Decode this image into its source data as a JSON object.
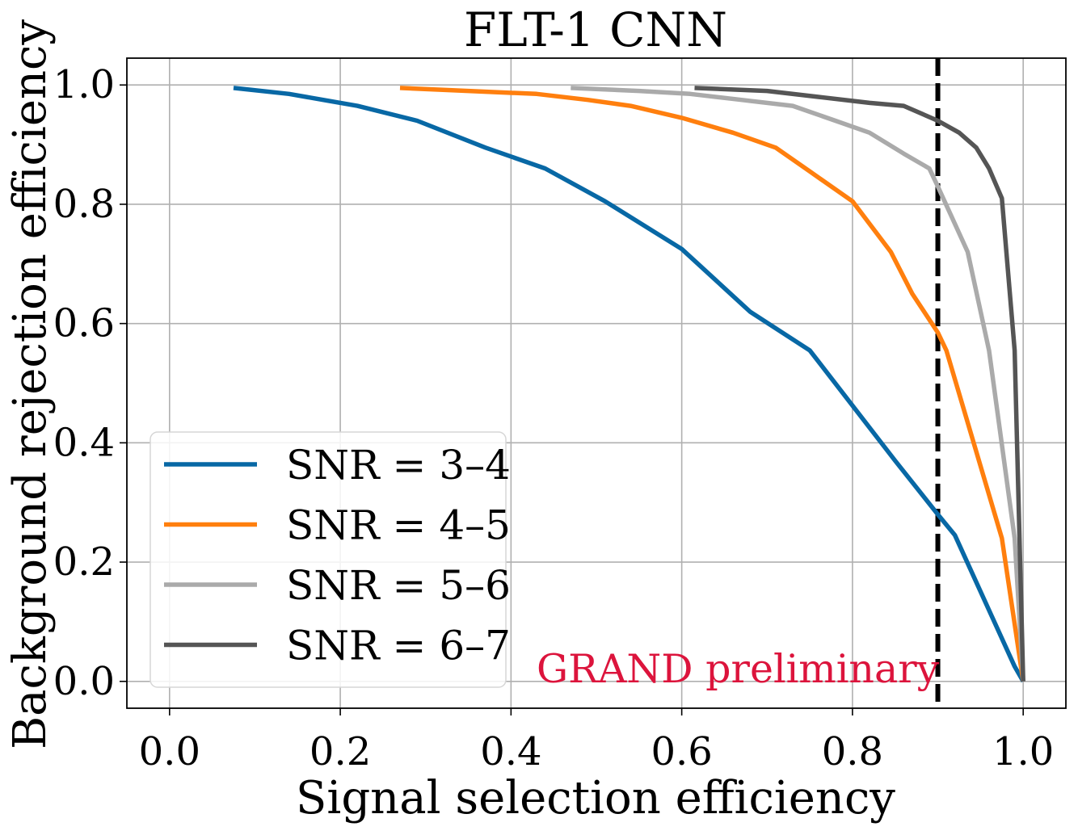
{
  "chart_data": {
    "type": "line",
    "title": "FLT-1 CNN",
    "xlabel": "Signal selection efficiency",
    "ylabel": "Background rejection efficiency",
    "xlim": [
      -0.05,
      1.05
    ],
    "ylim": [
      -0.045,
      1.045
    ],
    "xticks": [
      "0.0",
      "0.2",
      "0.4",
      "0.6",
      "0.8",
      "1.0"
    ],
    "yticks": [
      "0.0",
      "0.2",
      "0.4",
      "0.6",
      "0.8",
      "1.0"
    ],
    "grid": true,
    "legend_position": "lower-left",
    "annotation": "GRAND preliminary",
    "annotation_color": "#dc143c",
    "threshold_line": {
      "x": 0.9,
      "style": "dashed",
      "color": "#000000"
    },
    "series": [
      {
        "name": "SNR = 3–4",
        "color": "#0868a5",
        "x": [
          0.075,
          0.14,
          0.22,
          0.29,
          0.37,
          0.44,
          0.51,
          0.6,
          0.68,
          0.75,
          0.85,
          0.9,
          0.92,
          0.99,
          1.0
        ],
        "y": [
          0.995,
          0.985,
          0.965,
          0.94,
          0.895,
          0.86,
          0.805,
          0.725,
          0.62,
          0.555,
          0.37,
          0.28,
          0.245,
          0.025,
          0.0
        ]
      },
      {
        "name": "SNR = 4–5",
        "color": "#ff7f0e",
        "x": [
          0.27,
          0.35,
          0.43,
          0.49,
          0.54,
          0.6,
          0.66,
          0.71,
          0.75,
          0.8,
          0.845,
          0.87,
          0.9,
          0.91,
          0.975,
          1.0
        ],
        "y": [
          0.995,
          0.99,
          0.985,
          0.975,
          0.965,
          0.945,
          0.92,
          0.895,
          0.855,
          0.805,
          0.72,
          0.65,
          0.585,
          0.555,
          0.24,
          0.0
        ]
      },
      {
        "name": "SNR = 5–6",
        "color": "#aaaaaa",
        "x": [
          0.47,
          0.55,
          0.61,
          0.67,
          0.73,
          0.78,
          0.82,
          0.86,
          0.89,
          0.9,
          0.935,
          0.96,
          0.99,
          1.0
        ],
        "y": [
          0.995,
          0.99,
          0.985,
          0.975,
          0.965,
          0.94,
          0.92,
          0.885,
          0.86,
          0.83,
          0.72,
          0.555,
          0.24,
          0.0
        ]
      },
      {
        "name": "SNR = 6–7",
        "color": "#555555",
        "x": [
          0.615,
          0.7,
          0.76,
          0.82,
          0.86,
          0.9,
          0.925,
          0.945,
          0.96,
          0.975,
          0.99,
          1.0
        ],
        "y": [
          0.995,
          0.99,
          0.98,
          0.97,
          0.965,
          0.94,
          0.92,
          0.895,
          0.86,
          0.81,
          0.555,
          0.0
        ]
      }
    ]
  }
}
